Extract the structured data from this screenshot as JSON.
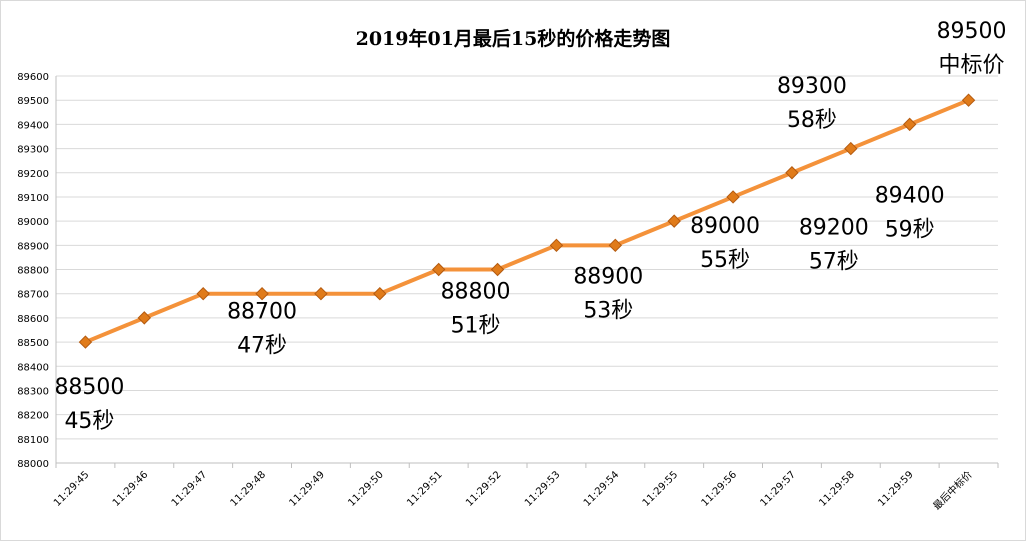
{
  "chart_data": {
    "type": "line",
    "title": "2019年01月最后15秒的价格走势图",
    "xlabel": "",
    "ylabel": "",
    "categories": [
      "11:29:45",
      "11:29:46",
      "11:29:47",
      "11:29:48",
      "11:29:49",
      "11:29:50",
      "11:29:51",
      "11:29:52",
      "11:29:53",
      "11:29:54",
      "11:29:55",
      "11:29:56",
      "11:29:57",
      "11:29:58",
      "11:29:59",
      "最后中标价"
    ],
    "series": [
      {
        "values": [
          88500,
          88600,
          88700,
          88700,
          88700,
          88700,
          88800,
          88800,
          88900,
          88900,
          89000,
          89100,
          89200,
          89300,
          89400,
          89500
        ]
      }
    ],
    "ylim": [
      88000,
      89600
    ],
    "yticks": [
      88000,
      88100,
      88200,
      88300,
      88400,
      88500,
      88600,
      88700,
      88800,
      88900,
      89000,
      89100,
      89200,
      89300,
      89400,
      89500,
      89600
    ],
    "grid": true,
    "legend": "none",
    "line_color": "#f4923a",
    "marker_color": "#e07b1a",
    "annotations": [
      {
        "category": "11:29:45",
        "lines": [
          "88500",
          "45秒"
        ]
      },
      {
        "category": "11:29:48",
        "lines": [
          "88700",
          "47秒"
        ]
      },
      {
        "category": "11:29:52",
        "lines": [
          "88800",
          "51秒"
        ]
      },
      {
        "category": "11:29:54",
        "lines": [
          "88900",
          "53秒"
        ]
      },
      {
        "category": "11:29:56",
        "lines": [
          "89000",
          "55秒"
        ]
      },
      {
        "category": "11:29:58",
        "lines": [
          "89200",
          "57秒"
        ]
      },
      {
        "category": "11:29:57",
        "lines": [
          "89300",
          "58秒"
        ]
      },
      {
        "category": "11:29:59",
        "lines": [
          "89400",
          "59秒"
        ]
      },
      {
        "category": "最后中标价",
        "lines": [
          "89500",
          "中标价"
        ]
      }
    ]
  }
}
